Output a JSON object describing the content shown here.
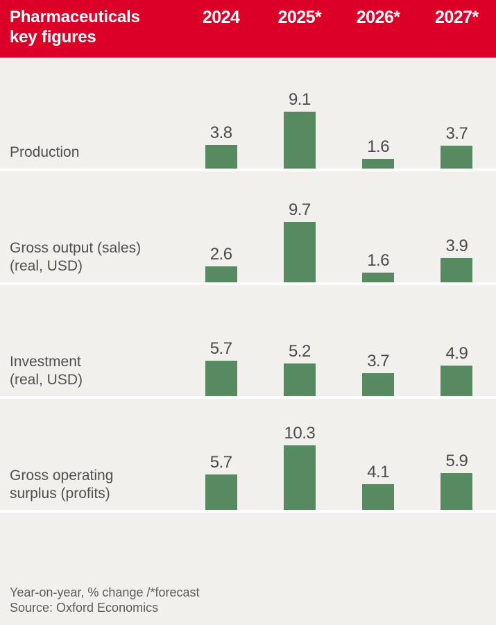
{
  "header": {
    "title_line1": "Pharmaceuticals",
    "title_line2": "key figures",
    "columns": [
      "2024",
      "2025*",
      "2026*",
      "2027*"
    ]
  },
  "chart_data": {
    "type": "bar",
    "title": "Pharmaceuticals key figures",
    "categories": [
      "2024",
      "2025*",
      "2026*",
      "2027*"
    ],
    "series": [
      {
        "name": "Production",
        "label_lines": [
          "Production"
        ],
        "values": [
          3.8,
          9.1,
          1.6,
          3.7
        ]
      },
      {
        "name": "Gross output (sales) (real, USD)",
        "label_lines": [
          "Gross output (sales)",
          "(real, USD)"
        ],
        "values": [
          2.6,
          9.7,
          1.6,
          3.9
        ]
      },
      {
        "name": "Investment (real, USD)",
        "label_lines": [
          "Investment",
          "(real, USD)"
        ],
        "values": [
          5.7,
          5.2,
          3.7,
          4.9
        ]
      },
      {
        "name": "Gross operating surplus (profits)",
        "label_lines": [
          "Gross operating",
          "surplus (profits)"
        ],
        "values": [
          5.7,
          10.3,
          4.1,
          5.9
        ]
      }
    ],
    "ylabel": "Year-on-year, % change",
    "value_labels_shown": true,
    "legend": "none",
    "grid": "off",
    "ylim": [
      0,
      11
    ]
  },
  "footer": {
    "note": "Year-on-year, % change /*forecast",
    "source": "Source: Oxford Economics"
  },
  "colors": {
    "header_bg": "#dc0028",
    "header_text": "#ffffff",
    "bar": "#588a62",
    "background": "#f2f0ed",
    "label_text": "#4f4f4f",
    "value_text": "#4a4a4a",
    "footer_text": "#5b5b5f",
    "separator": "#ffffff"
  }
}
